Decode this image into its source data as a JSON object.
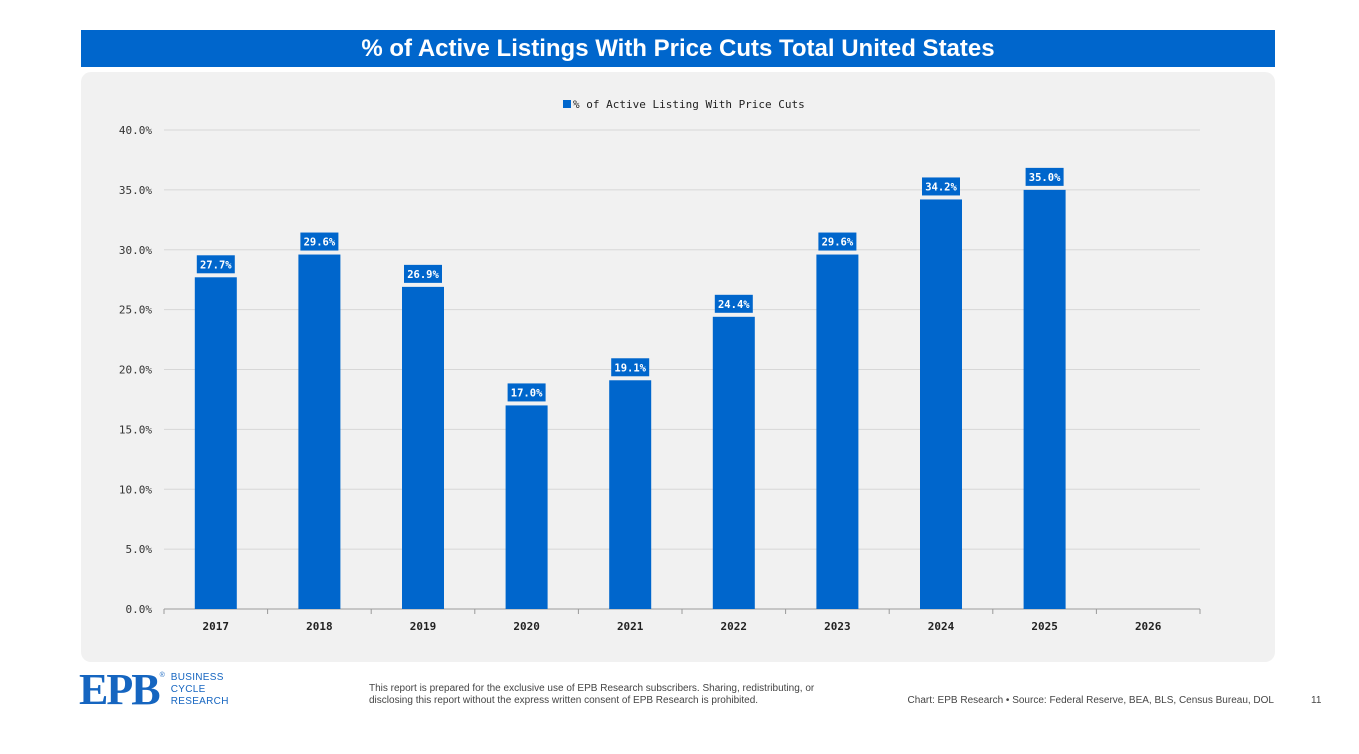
{
  "header": {
    "title": "% of Active Listings With Price Cuts Total United States"
  },
  "chart_data": {
    "type": "bar",
    "title": "% of Active Listings With Price Cuts Total United States",
    "categories": [
      "2017",
      "2018",
      "2019",
      "2020",
      "2021",
      "2022",
      "2023",
      "2024",
      "2025",
      "2026"
    ],
    "series": [
      {
        "name": "% of Active Listing With Price Cuts",
        "values": [
          27.7,
          29.6,
          26.9,
          17.0,
          19.1,
          24.4,
          29.6,
          34.2,
          35.0,
          null
        ],
        "labels": [
          "27.7%",
          "29.6%",
          "26.9%",
          "17.0%",
          "19.1%",
          "24.4%",
          "29.6%",
          "34.2%",
          "35.0%",
          ""
        ]
      }
    ],
    "ylim": [
      0,
      40
    ],
    "yticks": [
      0,
      5,
      10,
      15,
      20,
      25,
      30,
      35,
      40
    ],
    "ytick_labels": [
      "0.0%",
      "5.0%",
      "10.0%",
      "15.0%",
      "20.0%",
      "25.0%",
      "30.0%",
      "35.0%",
      "40.0%"
    ],
    "xlabel": "",
    "ylabel": "",
    "grid": true,
    "legend_position": "top-center",
    "bar_color": "#0066cc"
  },
  "footer": {
    "logo_text": "EPB",
    "logo_reg": "®",
    "logo_words": [
      "BUSINESS",
      "CYCLE",
      "RESEARCH"
    ],
    "disclaimer": "This report is prepared for the exclusive use of EPB Research subscribers. Sharing, redistributing, or disclosing this report without the express written consent of EPB Research is prohibited.",
    "credits": "Chart: EPB Research  •  Source: Federal Reserve, BEA, BLS, Census Bureau, DOL",
    "page_number": "11"
  }
}
